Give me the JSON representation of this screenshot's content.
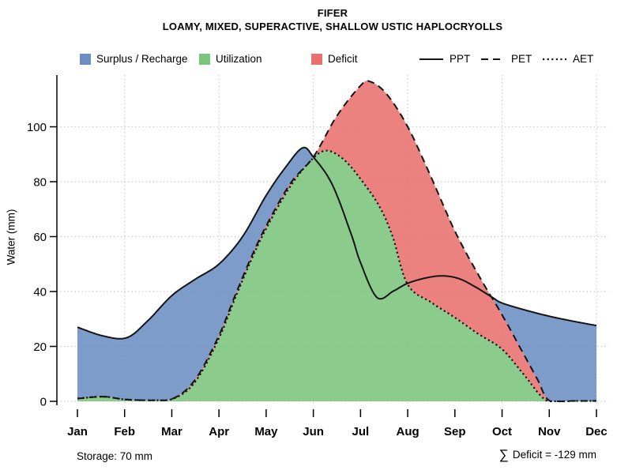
{
  "header": {
    "title": "FIFER",
    "subtitle": "LOAMY, MIXED, SUPERACTIVE, SHALLOW USTIC HAPLOCRYOLLS"
  },
  "legend": {
    "fills": [
      {
        "label": "Surplus / Recharge",
        "color": "#6C8EC2"
      },
      {
        "label": "Utilization",
        "color": "#7BC47C"
      },
      {
        "label": "Deficit",
        "color": "#E8716D"
      }
    ],
    "lines": [
      {
        "label": "PPT",
        "style": "solid"
      },
      {
        "label": "PET",
        "style": "dashed"
      },
      {
        "label": "AET",
        "style": "dotted"
      }
    ]
  },
  "axes": {
    "ylabel": "Water (mm)",
    "yticks": [
      0,
      20,
      40,
      60,
      80,
      100
    ],
    "months": [
      "Jan",
      "Feb",
      "Mar",
      "Apr",
      "May",
      "Jun",
      "Jul",
      "Aug",
      "Sep",
      "Oct",
      "Nov",
      "Dec"
    ],
    "grid_color": "#cccccc",
    "line_color": "#151515"
  },
  "annotations": {
    "storage": "Storage: 70 mm",
    "deficit_sigma": "∑",
    "deficit_text": "Deficit = -129 mm"
  },
  "chart_data": {
    "type": "area",
    "title": "FIFER",
    "subtitle": "LOAMY, MIXED, SUPERACTIVE, SHALLOW USTIC HAPLOCRYOLLS",
    "ylabel": "Water (mm)",
    "ylim": [
      0,
      120
    ],
    "x_unit": "month (1=Jan ... 12=Dec, fractional = within month)",
    "categories": [
      "Jan",
      "Feb",
      "Mar",
      "Apr",
      "May",
      "Jun",
      "Jul",
      "Aug",
      "Sep",
      "Oct",
      "Nov",
      "Dec"
    ],
    "grid": {
      "horizontal_at": [
        0,
        20,
        40,
        60,
        80,
        100
      ],
      "vertical_at_months": [
        "Feb",
        "Apr",
        "Jun",
        "Aug",
        "Oct",
        "Dec"
      ]
    },
    "storage_mm": 70,
    "sum_deficit_mm": -129,
    "series": [
      {
        "name": "PPT",
        "style": "solid",
        "monthly": [
          27,
          23.5,
          38.5,
          50,
          75,
          89,
          50.5,
          43,
          45,
          35.8,
          31,
          27.6
        ],
        "points": [
          [
            1,
            27
          ],
          [
            1.55,
            23.8
          ],
          [
            2.05,
            23.2
          ],
          [
            2.5,
            29.5
          ],
          [
            3,
            38.5
          ],
          [
            3.5,
            44.5
          ],
          [
            4,
            50
          ],
          [
            4.5,
            60
          ],
          [
            5,
            75
          ],
          [
            5.4,
            85
          ],
          [
            5.77,
            92.3
          ],
          [
            6,
            89
          ],
          [
            6.4,
            79
          ],
          [
            6.8,
            61
          ],
          [
            7,
            50.5
          ],
          [
            7.35,
            37.8
          ],
          [
            7.7,
            40.2
          ],
          [
            8,
            43
          ],
          [
            8.4,
            45
          ],
          [
            8.75,
            45.7
          ],
          [
            9.1,
            44.6
          ],
          [
            9.45,
            41.5
          ],
          [
            9.8,
            37.8
          ],
          [
            10,
            35.8
          ],
          [
            10.5,
            33.2
          ],
          [
            11,
            31
          ],
          [
            11.5,
            29.2
          ],
          [
            12,
            27.6
          ]
        ]
      },
      {
        "name": "PET",
        "style": "dashed",
        "monthly": [
          1,
          0.7,
          1.2,
          24,
          62,
          89,
          115,
          100,
          62,
          31.5,
          0.3,
          0.2
        ],
        "points": [
          [
            1,
            1
          ],
          [
            1.55,
            1.7
          ],
          [
            2,
            0.7
          ],
          [
            2.6,
            0.4
          ],
          [
            3.05,
            1.2
          ],
          [
            3.5,
            8
          ],
          [
            4,
            24
          ],
          [
            4.4,
            41
          ],
          [
            4.9,
            60.5
          ],
          [
            5.5,
            79
          ],
          [
            6,
            89
          ],
          [
            6.5,
            104
          ],
          [
            7,
            115
          ],
          [
            7.2,
            116.5
          ],
          [
            7.55,
            112
          ],
          [
            8,
            100
          ],
          [
            8.5,
            81.5
          ],
          [
            9,
            62
          ],
          [
            9.5,
            46
          ],
          [
            10,
            31.5
          ],
          [
            10.4,
            19
          ],
          [
            10.75,
            8
          ],
          [
            11,
            0.3
          ],
          [
            11.5,
            0.15
          ],
          [
            12,
            0.15
          ]
        ]
      },
      {
        "name": "AET",
        "style": "dotted",
        "monthly": [
          1,
          0.7,
          1.1,
          23,
          61,
          88.6,
          81,
          42.5,
          30.5,
          19,
          0.2,
          0.2
        ],
        "points": [
          [
            1,
            1
          ],
          [
            1.55,
            1.7
          ],
          [
            2,
            0.7
          ],
          [
            2.6,
            0.4
          ],
          [
            3.05,
            1.1
          ],
          [
            3.5,
            7.2
          ],
          [
            4,
            23
          ],
          [
            4.4,
            40
          ],
          [
            4.9,
            59.5
          ],
          [
            5.5,
            78
          ],
          [
            6,
            88.6
          ],
          [
            6.3,
            91.3
          ],
          [
            6.65,
            88
          ],
          [
            7,
            81
          ],
          [
            7.4,
            71
          ],
          [
            7.68,
            60
          ],
          [
            8,
            42.5
          ],
          [
            8.5,
            36
          ],
          [
            9,
            30.5
          ],
          [
            9.5,
            24.5
          ],
          [
            10,
            19
          ],
          [
            10.45,
            10
          ],
          [
            10.95,
            0.2
          ],
          [
            11.5,
            0.15
          ],
          [
            12,
            0.15
          ]
        ]
      }
    ],
    "areas": [
      {
        "name": "Surplus / Recharge",
        "between": [
          "PPT",
          "PET"
        ],
        "where": "PPT > PET",
        "color": "#6C8EC2"
      },
      {
        "name": "Utilization",
        "between": [
          "baseline",
          "AET"
        ],
        "color": "#7BC47C"
      },
      {
        "name": "Deficit",
        "between": [
          "AET",
          "PET"
        ],
        "where": "PET > AET",
        "color": "#E8716D"
      }
    ]
  }
}
